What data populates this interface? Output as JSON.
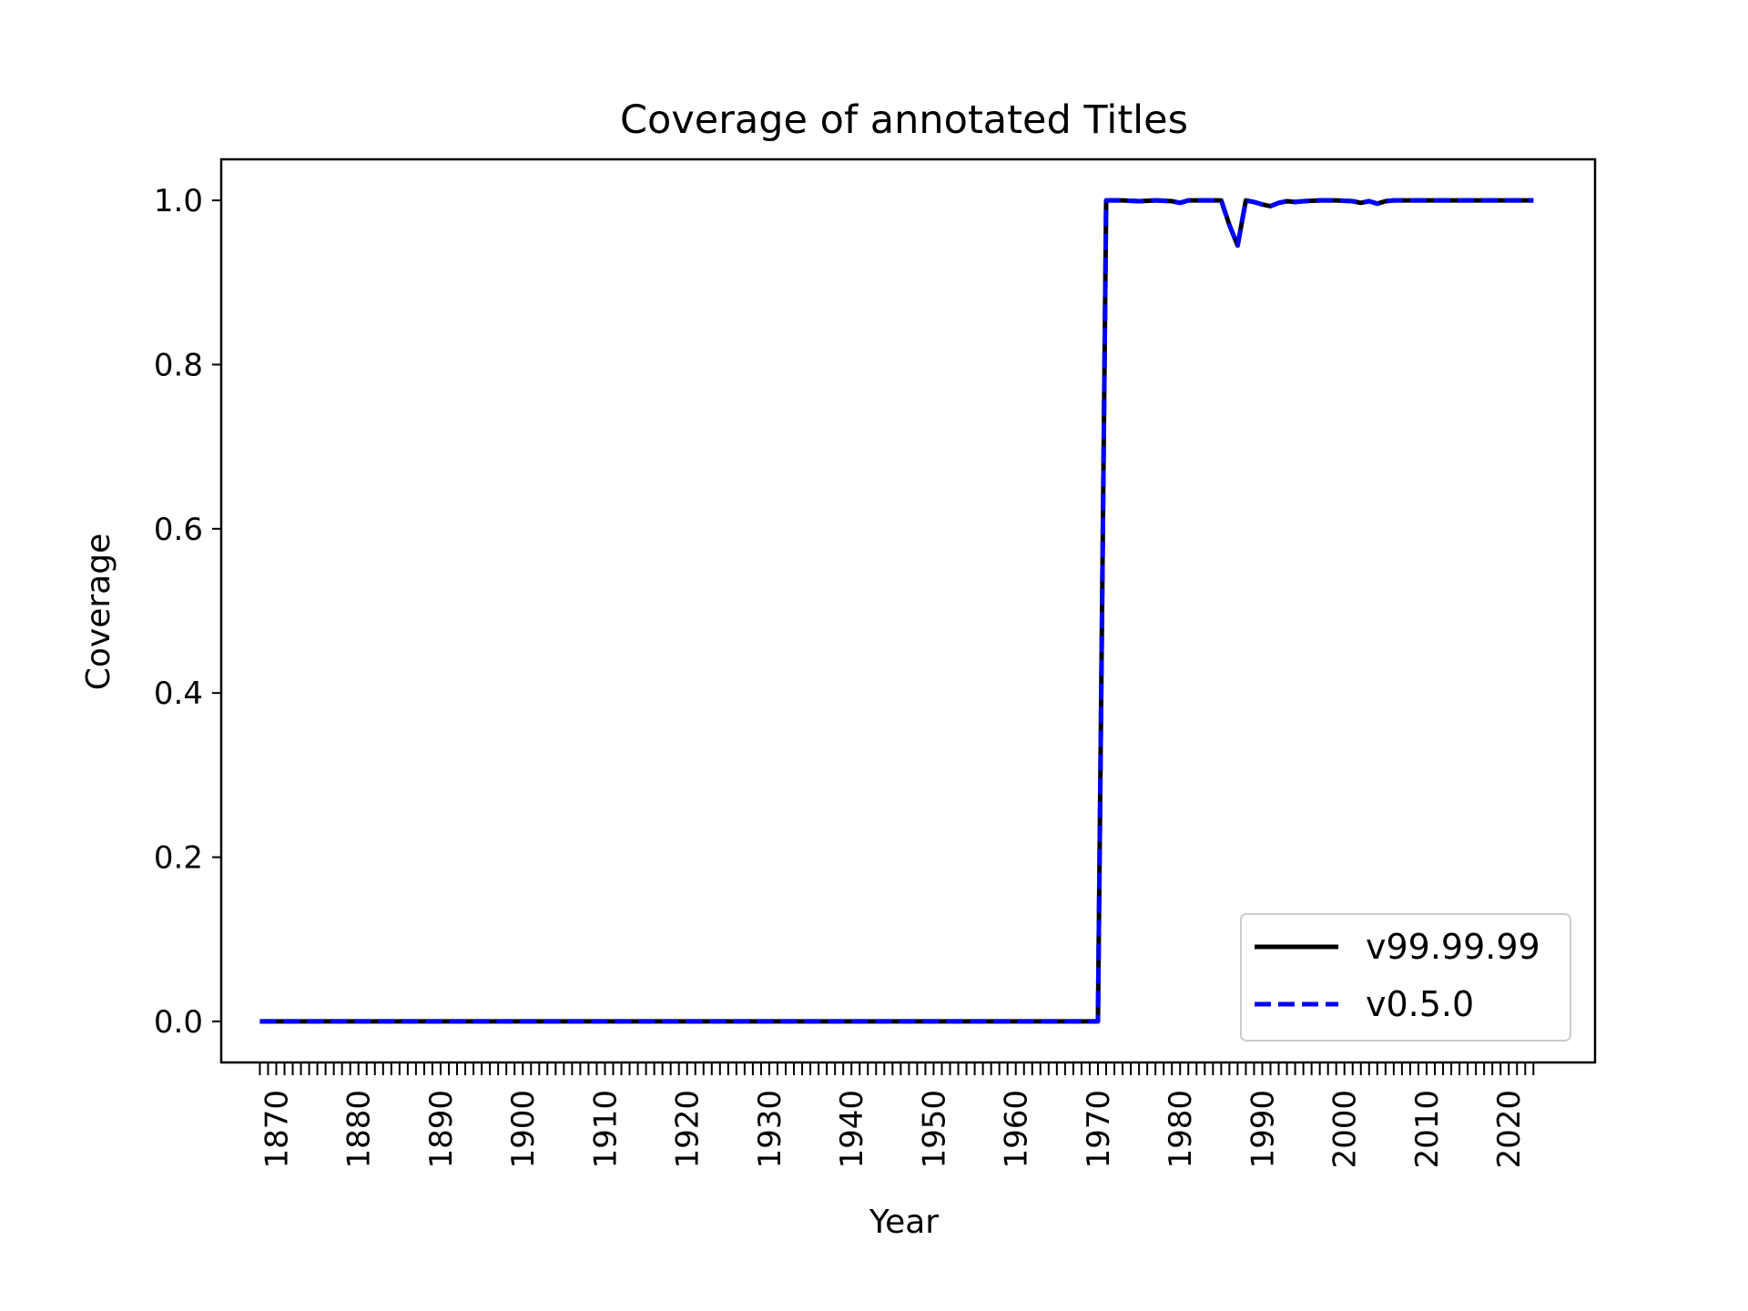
{
  "chart_data": {
    "type": "line",
    "title": "Coverage of annotated Titles",
    "xlabel": "Year",
    "ylabel": "Coverage",
    "xlim": [
      1863.3,
      2030.5
    ],
    "ylim": [
      -0.05,
      1.05
    ],
    "x_tick_labels": [
      "1870",
      "1880",
      "1890",
      "1900",
      "1910",
      "1920",
      "1930",
      "1940",
      "1950",
      "1960",
      "1970",
      "1980",
      "1990",
      "2000",
      "2010",
      "2020"
    ],
    "x_minor_ticks": "every year from 1868 to 2023",
    "y_tick_labels": [
      "0.0",
      "0.2",
      "0.4",
      "0.6",
      "0.8",
      "1.0"
    ],
    "grid": false,
    "legend_position": "lower right",
    "series": [
      {
        "name": "v99.99.99",
        "color": "#000000",
        "style": "solid",
        "x": [
          1868,
          1970,
          1971,
          1973,
          1975,
          1977,
          1979,
          1980,
          1981,
          1983,
          1985,
          1986,
          1987,
          1988,
          1989,
          1990,
          1991,
          1992,
          1993,
          1994,
          1995,
          1997,
          1999,
          2001,
          2002,
          2003,
          2004,
          2005,
          2006,
          2008,
          2010,
          2015,
          2020,
          2023
        ],
        "values": [
          0,
          0,
          1.0,
          1.0,
          0.999,
          1.0,
          0.999,
          0.997,
          1.0,
          1.0,
          1.0,
          0.97,
          0.945,
          1.0,
          0.998,
          0.995,
          0.993,
          0.997,
          0.999,
          0.998,
          0.999,
          1.0,
          1.0,
          0.999,
          0.997,
          0.999,
          0.996,
          0.999,
          1.0,
          1.0,
          1.0,
          1.0,
          1.0,
          1.0
        ]
      },
      {
        "name": "v0.5.0",
        "color": "#0000ff",
        "style": "dashed",
        "x": [
          1868,
          1970,
          1971,
          1973,
          1975,
          1977,
          1979,
          1980,
          1981,
          1983,
          1985,
          1986,
          1987,
          1988,
          1989,
          1990,
          1991,
          1992,
          1993,
          1994,
          1995,
          1997,
          1999,
          2001,
          2002,
          2003,
          2004,
          2005,
          2006,
          2008,
          2010,
          2015,
          2020,
          2023
        ],
        "values": [
          0,
          0,
          1.0,
          1.0,
          0.999,
          1.0,
          0.999,
          0.997,
          1.0,
          1.0,
          1.0,
          0.97,
          0.945,
          1.0,
          0.998,
          0.995,
          0.993,
          0.997,
          0.999,
          0.998,
          0.999,
          1.0,
          1.0,
          0.999,
          0.997,
          0.999,
          0.996,
          0.999,
          1.0,
          1.0,
          1.0,
          1.0,
          1.0,
          1.0
        ]
      }
    ]
  }
}
